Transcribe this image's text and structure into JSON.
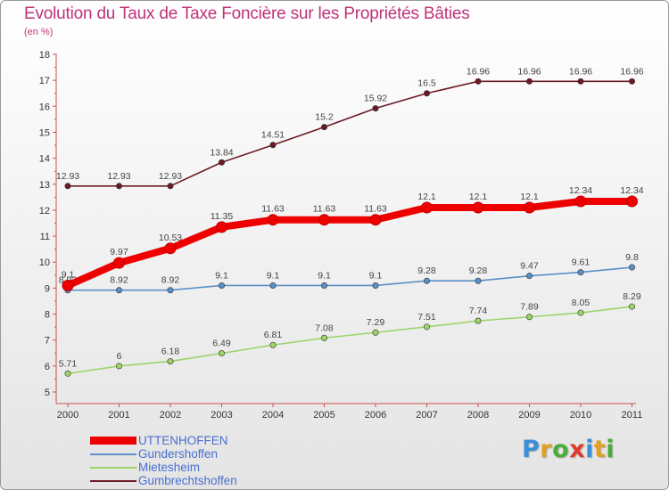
{
  "chart_data": {
    "type": "line",
    "title": "Evolution du Taux de Taxe Foncière sur les Propriétés Bâties",
    "subtitle": "(en %)",
    "x": [
      "2000",
      "2001",
      "2002",
      "2003",
      "2004",
      "2005",
      "2006",
      "2007",
      "2008",
      "2009",
      "2010",
      "2011"
    ],
    "ylim": [
      5,
      18
    ],
    "yticks": [
      5,
      6,
      7,
      8,
      9,
      10,
      11,
      12,
      13,
      14,
      15,
      16,
      17,
      18
    ],
    "grid": false,
    "legend_position": "bottom-left",
    "series": [
      {
        "name": "Gumbrechtshoffen",
        "color": "#6b1a24",
        "values": [
          12.93,
          12.93,
          12.93,
          13.84,
          14.51,
          15.2,
          15.92,
          16.5,
          16.96,
          16.96,
          16.96,
          16.96
        ],
        "labels": [
          "12.93",
          "12.93",
          "12.93",
          "13.84",
          "14.51",
          "15.2",
          "15.92",
          "16.5",
          "16.96",
          "16.96",
          "16.96",
          "16.96"
        ]
      },
      {
        "name": "Mietesheim",
        "color": "#9cd46a",
        "values": [
          5.71,
          6,
          6.18,
          6.49,
          6.81,
          7.08,
          7.29,
          7.51,
          7.74,
          7.89,
          8.05,
          8.29
        ],
        "labels": [
          "5.71",
          "6",
          "6.18",
          "6.49",
          "6.81",
          "7.08",
          "7.29",
          "7.51",
          "7.74",
          "7.89",
          "8.05",
          "8.29"
        ]
      },
      {
        "name": "Gundershoffen",
        "color": "#5b8fc8",
        "values": [
          8.92,
          8.92,
          8.92,
          9.1,
          9.1,
          9.1,
          9.1,
          9.28,
          9.28,
          9.47,
          9.61,
          9.8
        ],
        "labels": [
          "8.92",
          "8.92",
          "8.92",
          "9.1",
          "9.1",
          "9.1",
          "9.1",
          "9.28",
          "9.28",
          "9.47",
          "9.61",
          "9.8"
        ]
      },
      {
        "name": "UTTENHOFFEN",
        "color": "#ee0000",
        "values": [
          9.1,
          9.97,
          10.53,
          11.35,
          11.63,
          11.63,
          11.63,
          12.1,
          12.1,
          12.1,
          12.34,
          12.34
        ],
        "labels": [
          "9.1",
          "9.97",
          "10.53",
          "11.35",
          "11.63",
          "11.63",
          "11.63",
          "12.1",
          "12.1",
          "12.1",
          "12.34",
          "12.34"
        ]
      }
    ],
    "legend": [
      "UTTENHOFFEN",
      "Gundershoffen",
      "Mietesheim",
      "Gumbrechtshoffen"
    ]
  },
  "brand": {
    "letters": [
      "P",
      "r",
      "o",
      "x",
      "i",
      "t",
      "i"
    ],
    "colors": [
      "#3b8fd6",
      "#e0a020",
      "#49ad3a",
      "#e03a2c",
      "#3b8fd6",
      "#e0a020",
      "#49ad3a"
    ]
  }
}
